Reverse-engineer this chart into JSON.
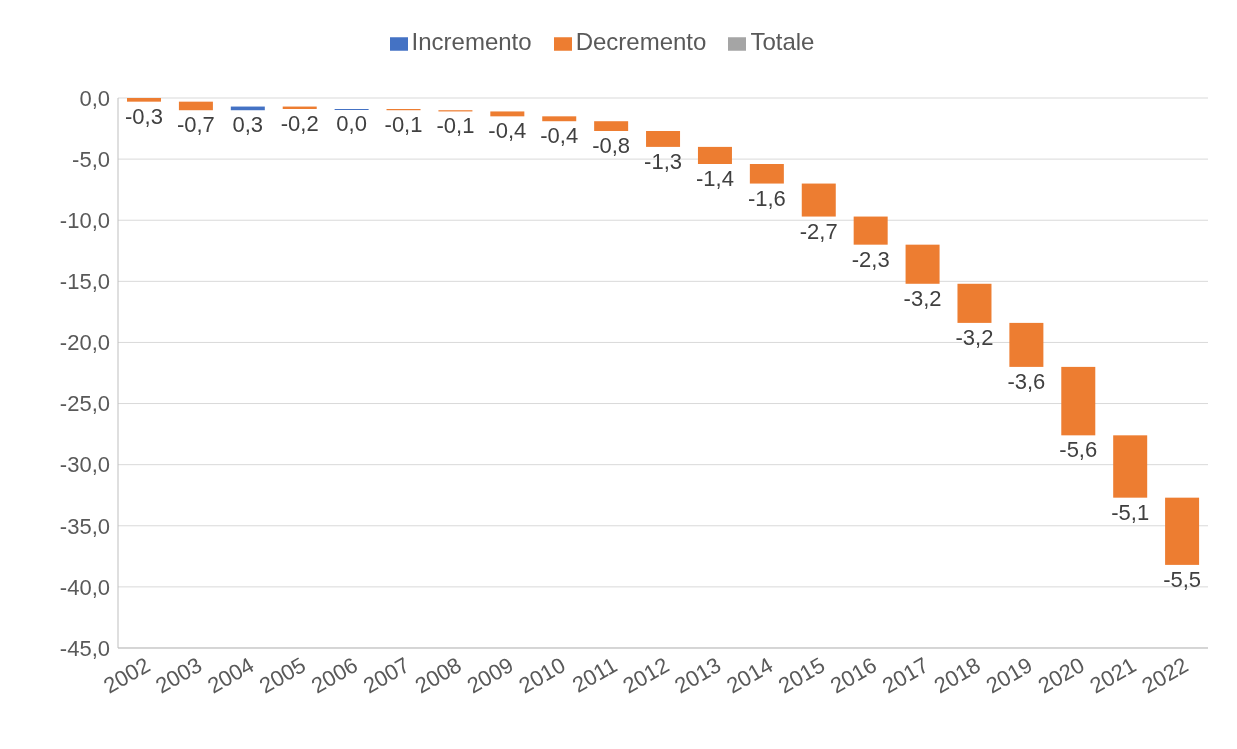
{
  "chart_data": {
    "type": "bar",
    "categories": [
      "2002",
      "2003",
      "2004",
      "2005",
      "2006",
      "2007",
      "2008",
      "2009",
      "2010",
      "2011",
      "2012",
      "2013",
      "2014",
      "2015",
      "2016",
      "2017",
      "2018",
      "2019",
      "2020",
      "2021",
      "2022"
    ],
    "series": [
      {
        "name": "Incremento",
        "color": "#4472c4",
        "base": [
          null,
          null,
          -1.0,
          null,
          -0.9,
          null,
          null,
          null,
          null,
          null,
          null,
          null,
          null,
          null,
          null,
          null,
          null,
          null,
          null,
          null,
          null
        ],
        "values": [
          null,
          null,
          0.3,
          null,
          0.0,
          null,
          null,
          null,
          null,
          null,
          null,
          null,
          null,
          null,
          null,
          null,
          null,
          null,
          null,
          null,
          null
        ],
        "value_labels": [
          null,
          null,
          "0,3",
          null,
          "0,0",
          null,
          null,
          null,
          null,
          null,
          null,
          null,
          null,
          null,
          null,
          null,
          null,
          null,
          null,
          null,
          null
        ]
      },
      {
        "name": "Decremento",
        "color": "#ed7d31",
        "base": [
          0,
          -0.3,
          null,
          -0.7,
          null,
          -0.9,
          -1.0,
          -1.1,
          -1.5,
          -1.9,
          -2.7,
          -4.0,
          -5.4,
          -7.0,
          -9.7,
          -12.0,
          -15.2,
          -18.4,
          -22.0,
          -27.6,
          -32.7
        ],
        "values": [
          -0.3,
          -0.7,
          null,
          -0.2,
          null,
          -0.1,
          -0.1,
          -0.4,
          -0.4,
          -0.8,
          -1.3,
          -1.4,
          -1.6,
          -2.7,
          -2.3,
          -3.2,
          -3.2,
          -3.6,
          -5.6,
          -5.1,
          -5.5
        ],
        "value_labels": [
          "-0,3",
          "-0,7",
          null,
          "-0,2",
          null,
          "-0,1",
          "-0,1",
          "-0,4",
          "-0,4",
          "-0,8",
          "-1,3",
          "-1,4",
          "-1,6",
          "-2,7",
          "-2,3",
          "-3,2",
          "-3,2",
          "-3,6",
          "-5,6",
          "-5,1",
          "-5,5"
        ]
      },
      {
        "name": "Totale",
        "color": "#a5a5a5",
        "values": [
          null,
          null,
          null,
          null,
          null,
          null,
          null,
          null,
          null,
          null,
          null,
          null,
          null,
          null,
          null,
          null,
          null,
          null,
          null,
          null,
          null
        ]
      }
    ],
    "ylim": [
      -45,
      0
    ],
    "yticks": [
      {
        "value": 0,
        "label": "0,0"
      },
      {
        "value": -5,
        "label": "-5,0"
      },
      {
        "value": -10,
        "label": "-10,0"
      },
      {
        "value": -15,
        "label": "-15,0"
      },
      {
        "value": -20,
        "label": "-20,0"
      },
      {
        "value": -25,
        "label": "-25,0"
      },
      {
        "value": -30,
        "label": "-30,0"
      },
      {
        "value": -35,
        "label": "-35,0"
      },
      {
        "value": -40,
        "label": "-40,0"
      },
      {
        "value": -45,
        "label": "-45,0"
      }
    ],
    "grid": "y",
    "legend": "top"
  }
}
